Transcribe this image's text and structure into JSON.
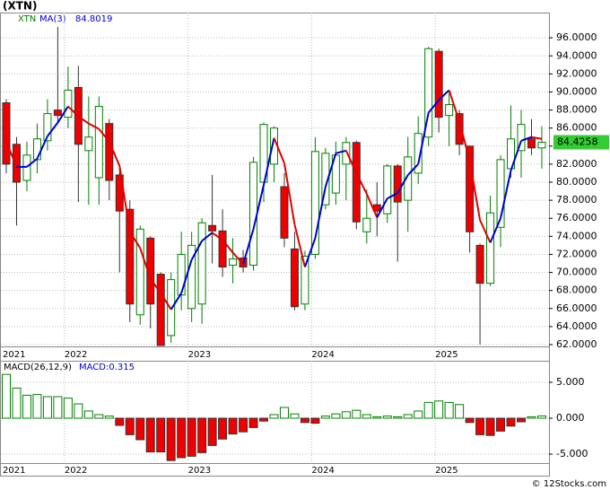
{
  "title": "(XTN)",
  "footer": "© 12Stocks.com",
  "chart_data": [
    {
      "type": "candlestick",
      "categories": [
        "2021",
        null,
        null,
        null,
        null,
        null,
        "2022",
        null,
        null,
        null,
        null,
        null,
        null,
        null,
        null,
        null,
        null,
        null,
        "2023",
        null,
        null,
        null,
        null,
        null,
        null,
        null,
        null,
        null,
        null,
        null,
        "2024",
        null,
        null,
        null,
        null,
        null,
        null,
        null,
        null,
        null,
        null,
        null,
        "2025",
        null,
        null,
        null,
        null,
        null,
        null,
        null,
        null,
        null,
        null
      ],
      "series": [
        {
          "name": "XTN",
          "color": "#008000",
          "down_color": "#ee0000",
          "open": [
            88.8,
            84.2,
            80.2,
            82.5,
            84.6,
            88.0,
            87.2,
            90.5,
            83.5,
            80.5,
            86.5,
            80.8,
            77.0,
            65.3,
            73.8,
            69.8,
            63.0,
            67.5,
            66.0,
            66.5,
            75.2,
            74.6,
            70.8,
            71.6,
            70.8,
            80.0,
            82.0,
            79.5,
            72.6,
            66.5,
            72.0,
            77.5,
            78.8,
            82.0,
            84.4,
            74.5,
            77.5,
            76.5,
            81.8,
            78.0,
            81.0,
            85.0,
            94.5,
            87.4,
            87.6,
            84.0,
            73.0,
            68.8,
            75.0,
            81.5,
            83.5,
            84.8,
            83.8
          ],
          "high": [
            89.2,
            85.0,
            84.5,
            86.5,
            89.2,
            97.2,
            92.8,
            92.9,
            89.5,
            89.5,
            87.0,
            82.0,
            78.0,
            75.2,
            74.0,
            70.0,
            70.0,
            74.5,
            74.5,
            76.0,
            80.8,
            77.0,
            73.8,
            72.5,
            82.8,
            86.6,
            86.2,
            81.0,
            74.5,
            72.4,
            85.0,
            83.8,
            84.5,
            85.0,
            84.6,
            79.2,
            80.0,
            82.0,
            82.0,
            85.0,
            87.3,
            95.0,
            94.8,
            90.0,
            88.0,
            84.0,
            73.2,
            78.5,
            83.0,
            88.5,
            88.0,
            87.0,
            86.2
          ],
          "low": [
            81.0,
            75.2,
            79.0,
            81.0,
            83.5,
            86.5,
            86.0,
            77.8,
            77.5,
            77.5,
            78.0,
            70.0,
            64.5,
            64.2,
            63.8,
            61.9,
            62.2,
            65.8,
            64.5,
            64.3,
            71.0,
            69.5,
            68.8,
            70.0,
            70.2,
            77.8,
            80.0,
            72.8,
            65.8,
            65.8,
            71.5,
            77.0,
            77.5,
            78.0,
            74.8,
            73.2,
            74.0,
            75.5,
            71.2,
            74.5,
            79.8,
            84.0,
            85.5,
            84.0,
            83.0,
            72.2,
            62.0,
            68.5,
            72.8,
            80.5,
            80.5,
            83.0,
            81.5
          ],
          "close": [
            82.0,
            80.0,
            83.0,
            84.8,
            87.6,
            87.4,
            90.2,
            84.2,
            85.0,
            88.4,
            80.2,
            76.8,
            66.5,
            74.8,
            66.5,
            61.9,
            69.2,
            72.0,
            73.0,
            75.5,
            74.6,
            70.6,
            71.5,
            70.6,
            82.2,
            86.4,
            86.0,
            73.8,
            66.2,
            71.8,
            83.4,
            83.2,
            83.0,
            84.4,
            75.6,
            76.0,
            76.8,
            81.8,
            77.8,
            82.8,
            85.4,
            94.8,
            87.2,
            88.6,
            84.2,
            74.5,
            68.8,
            76.6,
            82.5,
            84.8,
            86.4,
            83.8,
            84.4258
          ]
        },
        {
          "name": "MA(3)",
          "color": "#0000cc",
          "down_color": "#e00000",
          "values": [
            84.5,
            81.7,
            81.7,
            82.6,
            85.1,
            86.6,
            88.4,
            87.3,
            86.5,
            85.9,
            84.5,
            81.8,
            74.5,
            72.7,
            69.3,
            67.7,
            65.9,
            67.7,
            71.4,
            73.5,
            74.4,
            73.6,
            72.2,
            70.9,
            74.8,
            79.7,
            84.9,
            82.1,
            75.3,
            70.6,
            73.8,
            79.5,
            83.2,
            83.5,
            81.0,
            78.7,
            76.1,
            78.2,
            78.8,
            80.8,
            82.0,
            87.7,
            89.1,
            90.2,
            86.7,
            82.4,
            75.8,
            73.3,
            76.0,
            81.3,
            84.6,
            85.0,
            84.8019
          ]
        }
      ],
      "ylim": [
        61.8,
        98.8
      ],
      "yticks": [
        {
          "value": 62,
          "label": "62.0000"
        },
        {
          "value": 64,
          "label": "64.0000"
        },
        {
          "value": 66,
          "label": "66.0000"
        },
        {
          "value": 68,
          "label": "68.0000"
        },
        {
          "value": 70,
          "label": "70.0000"
        },
        {
          "value": 72,
          "label": "72.0000"
        },
        {
          "value": 74,
          "label": "74.0000"
        },
        {
          "value": 76,
          "label": "76.0000"
        },
        {
          "value": 78,
          "label": "78.0000"
        },
        {
          "value": 80,
          "label": "80.0000"
        },
        {
          "value": 82,
          "label": "82.0000"
        },
        {
          "value": 84,
          "label": "84.0000"
        },
        {
          "value": 86,
          "label": "86.0000"
        },
        {
          "value": 88,
          "label": "88.0000"
        },
        {
          "value": 90,
          "label": "90.0000"
        },
        {
          "value": 92,
          "label": "92.0000"
        },
        {
          "value": 94,
          "label": "94.0000"
        },
        {
          "value": 96,
          "label": "96.0000"
        }
      ],
      "grid": true
    },
    {
      "type": "bar",
      "title": "MACD(26,12,9)",
      "series": [
        {
          "name": "MACD:0.315",
          "color": "#008000",
          "down_color": "#ee0000",
          "values": [
            6.1,
            4.2,
            3.2,
            3.3,
            3.0,
            3.0,
            2.8,
            2.0,
            1.0,
            0.5,
            0.3,
            -1.0,
            -2.3,
            -3.0,
            -4.7,
            -4.7,
            -5.9,
            -5.5,
            -5.3,
            -4.8,
            -3.8,
            -2.9,
            -2.2,
            -1.9,
            -1.3,
            -0.4,
            0.5,
            1.5,
            0.6,
            -0.6,
            -0.7,
            0.3,
            0.6,
            0.9,
            1.1,
            0.5,
            0.2,
            0.3,
            0.2,
            0.5,
            1.0,
            2.2,
            2.4,
            2.2,
            1.9,
            -0.6,
            -2.3,
            -2.4,
            -1.8,
            -1.1,
            -0.5,
            0.2,
            0.315
          ]
        }
      ],
      "ylim": [
        -6.25,
        8
      ],
      "yticks": [
        {
          "value": 5,
          "label": "5.000"
        },
        {
          "value": 0,
          "label": "0.000"
        },
        {
          "value": -5,
          "label": "-5.000"
        }
      ],
      "grid": true
    }
  ]
}
